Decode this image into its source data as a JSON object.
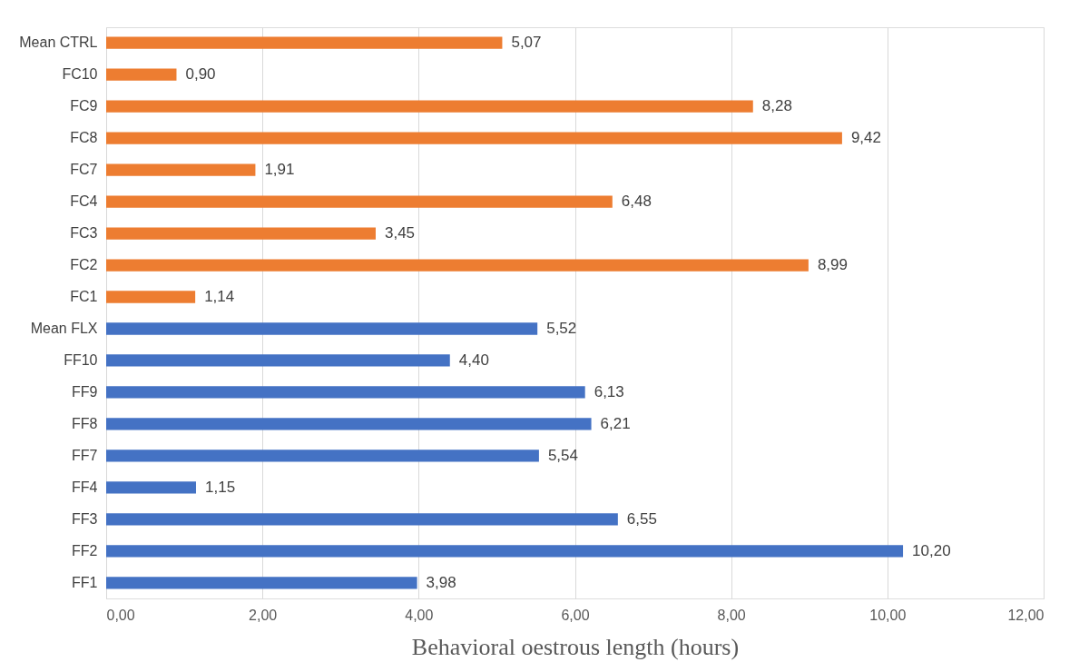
{
  "chart_data": {
    "type": "bar",
    "orientation": "horizontal",
    "xlabel": "Behavioral oestrous length (hours)",
    "categories": [
      "Mean CTRL",
      "FC10",
      "FC9",
      "FC8",
      "FC7",
      "FC4",
      "FC3",
      "FC2",
      "FC1",
      "Mean FLX",
      "FF10",
      "FF9",
      "FF8",
      "FF7",
      "FF4",
      "FF3",
      "FF2",
      "FF1"
    ],
    "values": [
      5.07,
      0.9,
      8.28,
      9.42,
      1.91,
      6.48,
      3.45,
      8.99,
      1.14,
      5.52,
      4.4,
      6.13,
      6.21,
      5.54,
      1.15,
      6.55,
      10.2,
      3.98
    ],
    "value_labels": [
      "5,07",
      "0,90",
      "8,28",
      "9,42",
      "1,91",
      "6,48",
      "3,45",
      "8,99",
      "1,14",
      "5,52",
      "4,40",
      "6,13",
      "6,21",
      "5,54",
      "1,15",
      "6,55",
      "10,20",
      "3,98"
    ],
    "colors": [
      "#ed7d31",
      "#ed7d31",
      "#ed7d31",
      "#ed7d31",
      "#ed7d31",
      "#ed7d31",
      "#ed7d31",
      "#ed7d31",
      "#ed7d31",
      "#4472c4",
      "#4472c4",
      "#4472c4",
      "#4472c4",
      "#4472c4",
      "#4472c4",
      "#4472c4",
      "#4472c4",
      "#4472c4"
    ],
    "xlim": [
      0,
      12
    ],
    "xticks": [
      {
        "value": 0,
        "label": "0,00"
      },
      {
        "value": 2,
        "label": "2,00"
      },
      {
        "value": 4,
        "label": "4,00"
      },
      {
        "value": 6,
        "label": "6,00"
      },
      {
        "value": 8,
        "label": "8,00"
      },
      {
        "value": 10,
        "label": "10,00"
      },
      {
        "value": 12,
        "label": "12,00"
      }
    ],
    "grid": "x"
  }
}
